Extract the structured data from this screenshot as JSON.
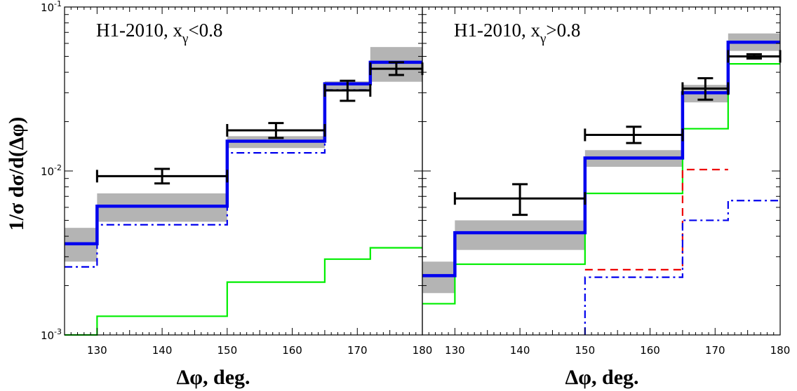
{
  "chart_data": [
    {
      "type": "line",
      "title": "H1-2010, x_γ<0.8",
      "title_main": "H1-2010, x",
      "title_sub": "γ",
      "title_tail": "<0.8",
      "xlabel": "Δφ, deg.",
      "ylabel": "1/σ dσ/d(Δφ)",
      "xlim": [
        125,
        180
      ],
      "ylim": [
        0.001,
        0.1
      ],
      "yscale": "log",
      "x_ticks": [
        "130",
        "140",
        "150",
        "160",
        "170",
        "180"
      ],
      "y_ticks": [
        {
          "base": "10",
          "exp": "-1"
        },
        {
          "base": "10",
          "exp": "-2"
        },
        {
          "base": "10",
          "exp": "-3"
        }
      ],
      "bin_edges": [
        125,
        130,
        150,
        165,
        172,
        180
      ],
      "band": {
        "color": "#b4b4b4",
        "low": [
          0.0028,
          0.0049,
          0.0138,
          0.0305,
          0.035
        ],
        "high": [
          0.0045,
          0.0073,
          0.0163,
          0.0352,
          0.057
        ]
      },
      "series": [
        {
          "style": "solid-thick",
          "color": "#0000ee",
          "values": [
            0.0036,
            0.0061,
            0.0152,
            0.034,
            0.046
          ]
        },
        {
          "style": "dashdot",
          "color": "#0000ee",
          "values": [
            0.0026,
            0.0047,
            0.0129,
            0.0312,
            0.042
          ]
        },
        {
          "style": "solid-thin",
          "color": "#00ee00",
          "values": [
            0.0009,
            0.0013,
            0.0021,
            0.0029,
            0.0034
          ]
        }
      ],
      "data_points": [
        {
          "x_low": 130,
          "x_high": 150,
          "x": 140,
          "y": 0.0093,
          "y_low": 0.0084,
          "y_high": 0.0103
        },
        {
          "x_low": 150,
          "x_high": 165,
          "x": 157.5,
          "y": 0.0177,
          "y_low": 0.0159,
          "y_high": 0.0196
        },
        {
          "x_low": 165,
          "x_high": 172,
          "x": 168.5,
          "y": 0.031,
          "y_low": 0.0268,
          "y_high": 0.0355
        },
        {
          "x_low": 172,
          "x_high": 180,
          "x": 176,
          "y": 0.042,
          "y_low": 0.0385,
          "y_high": 0.046
        }
      ]
    },
    {
      "type": "line",
      "title": "H1-2010, x_γ>0.8",
      "title_main": "H1-2010, x",
      "title_sub": "γ",
      "title_tail": ">0.8",
      "xlabel": "Δφ, deg.",
      "xlim": [
        125,
        180
      ],
      "ylim": [
        0.001,
        0.1
      ],
      "yscale": "log",
      "x_ticks": [
        "130",
        "140",
        "150",
        "160",
        "170",
        "180"
      ],
      "bin_edges": [
        125,
        130,
        150,
        165,
        172,
        180
      ],
      "band": {
        "color": "#b4b4b4",
        "low": [
          0.0018,
          0.0033,
          0.0106,
          0.0262,
          0.054
        ],
        "high": [
          0.0028,
          0.005,
          0.0134,
          0.0335,
          0.069
        ]
      },
      "series": [
        {
          "style": "solid-thick",
          "color": "#0000ee",
          "values": [
            0.0023,
            0.0042,
            0.012,
            0.03,
            0.061
          ]
        },
        {
          "style": "solid-thin",
          "color": "#00ee00",
          "values": [
            0.00155,
            0.0027,
            0.0073,
            0.0181,
            0.045
          ]
        },
        {
          "style": "dashed",
          "color": "#ee0000",
          "values": [
            null,
            null,
            0.0025,
            0.0102,
            null
          ]
        },
        {
          "style": "dashdot",
          "color": "#0000ee",
          "values": [
            null,
            null,
            0.00225,
            0.005,
            0.0066
          ]
        }
      ],
      "data_points": [
        {
          "x_low": 130,
          "x_high": 150,
          "x": 140,
          "y": 0.0068,
          "y_low": 0.0054,
          "y_high": 0.0083
        },
        {
          "x_low": 150,
          "x_high": 165,
          "x": 157.5,
          "y": 0.0166,
          "y_low": 0.0148,
          "y_high": 0.0186
        },
        {
          "x_low": 165,
          "x_high": 172,
          "x": 168.5,
          "y": 0.0318,
          "y_low": 0.0272,
          "y_high": 0.0368
        },
        {
          "x_low": 172,
          "x_high": 180,
          "x": 176,
          "y": 0.05,
          "y_low": 0.0485,
          "y_high": 0.0515
        }
      ]
    }
  ]
}
